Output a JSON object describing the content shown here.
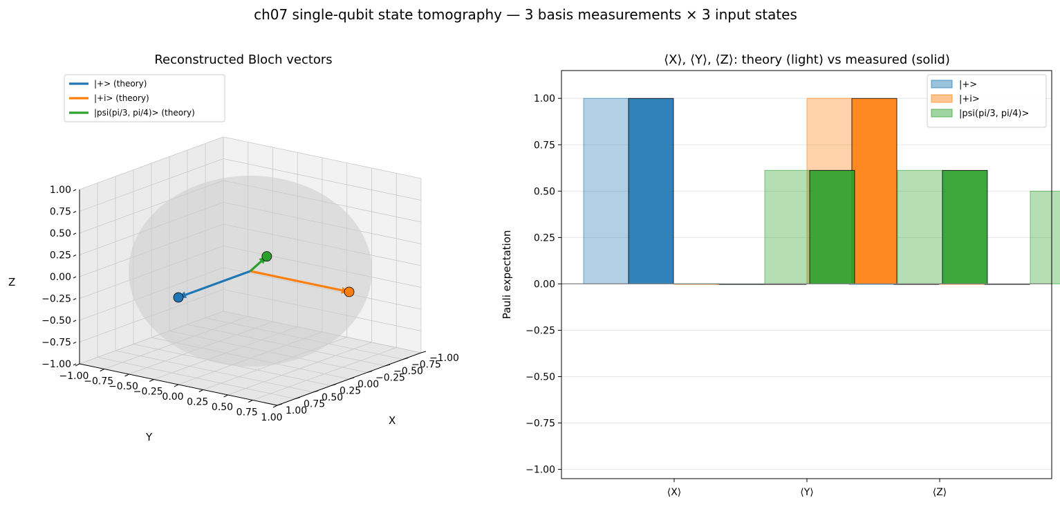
{
  "figure": {
    "suptitle": "ch07 single-qubit state tomography — 3 basis measurements × 3 input states"
  },
  "colors": {
    "blue": "#1f77b4",
    "orange": "#ff7f0e",
    "green": "#2ca02c",
    "sphere": "#cccccc",
    "grid": "#e6e6e6",
    "zero_line": "#808080"
  },
  "chart_data": [
    {
      "type": "scatter",
      "title": "Reconstructed Bloch vectors",
      "xlabel": "X",
      "ylabel": "Y",
      "zlabel": "Z",
      "xlim": [
        -1.0,
        1.0
      ],
      "ylim": [
        -1.0,
        1.0
      ],
      "zlim": [
        -1.0,
        1.0
      ],
      "tick_labels": [
        "−1.00",
        "−0.75",
        "−0.50",
        "−0.25",
        "0.00",
        "0.25",
        "0.50",
        "0.75",
        "1.00"
      ],
      "legend": [
        "|+> (theory)",
        "|+i> (theory)",
        "|psi(pi/3, pi/4)> (theory)"
      ],
      "legend_position": "top-left",
      "series": [
        {
          "name": "|+> (theory)",
          "color": "#1f77b4",
          "vector": [
            1.0,
            0.0,
            0.0
          ],
          "measured": [
            1.0,
            0.0,
            0.0
          ]
        },
        {
          "name": "|+i> (theory)",
          "color": "#ff7f0e",
          "vector": [
            0.0,
            1.0,
            0.0
          ],
          "measured": [
            0.0,
            1.0,
            0.0
          ]
        },
        {
          "name": "|psi(pi/3, pi/4)> (theory)",
          "color": "#2ca02c",
          "vector": [
            0.612,
            0.612,
            0.5
          ],
          "measured": [
            0.612,
            0.612,
            0.5
          ]
        }
      ]
    },
    {
      "type": "bar",
      "title": "⟨X⟩, ⟨Y⟩, ⟨Z⟩: theory (light) vs measured (solid)",
      "xlabel": "",
      "ylabel": "Pauli expectation",
      "categories": [
        "⟨X⟩",
        "⟨Y⟩",
        "⟨Z⟩"
      ],
      "ylim": [
        -1.05,
        1.15
      ],
      "yticks": [
        -1.0,
        -0.75,
        -0.5,
        -0.25,
        0.0,
        0.25,
        0.5,
        0.75,
        1.0
      ],
      "ytick_labels": [
        "−1.00",
        "−0.75",
        "−0.50",
        "−0.25",
        "0.00",
        "0.25",
        "0.50",
        "0.75",
        "1.00"
      ],
      "grid": "horizontal",
      "legend_position": "top-right",
      "series": [
        {
          "name": "|+>",
          "color": "#1f77b4",
          "theory": [
            1.0,
            0.0,
            0.0
          ],
          "measured": [
            1.0,
            0.0,
            0.0
          ]
        },
        {
          "name": "|+i>",
          "color": "#ff7f0e",
          "theory": [
            0.0,
            1.0,
            0.0
          ],
          "measured": [
            0.0,
            1.0,
            0.0
          ]
        },
        {
          "name": "|psi(pi/3, pi/4)>",
          "color": "#2ca02c",
          "theory": [
            0.612,
            0.612,
            0.5
          ],
          "measured": [
            0.612,
            0.612,
            0.5
          ]
        }
      ]
    }
  ]
}
